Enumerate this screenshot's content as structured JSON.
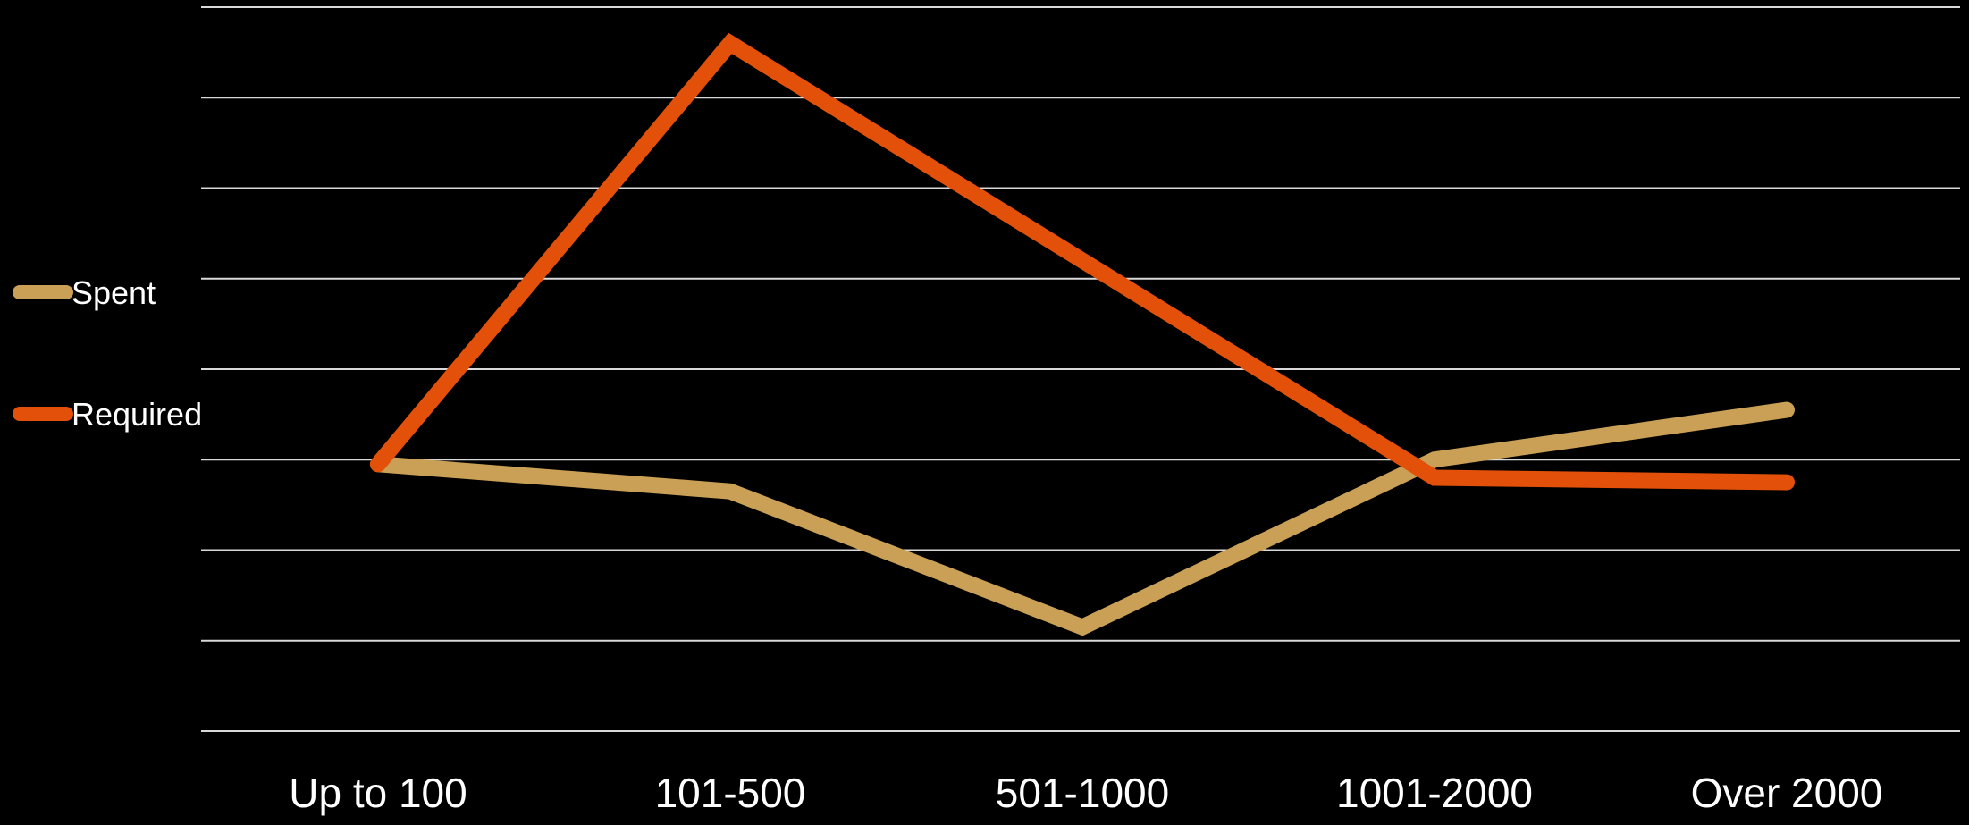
{
  "chart_data": {
    "type": "line",
    "categories": [
      "Up to 100",
      "101-500",
      "501-1000",
      "1001-2000",
      "Over 2000"
    ],
    "series": [
      {
        "name": "Spent",
        "color": "#c9a055",
        "values": [
          2.95,
          2.65,
          1.15,
          3.0,
          3.55
        ]
      },
      {
        "name": "Required",
        "color": "#e3500a",
        "values": [
          2.95,
          7.6,
          5.2,
          2.8,
          2.75
        ]
      }
    ],
    "ylim": [
      0,
      8
    ],
    "grid": true,
    "legend": "left"
  }
}
